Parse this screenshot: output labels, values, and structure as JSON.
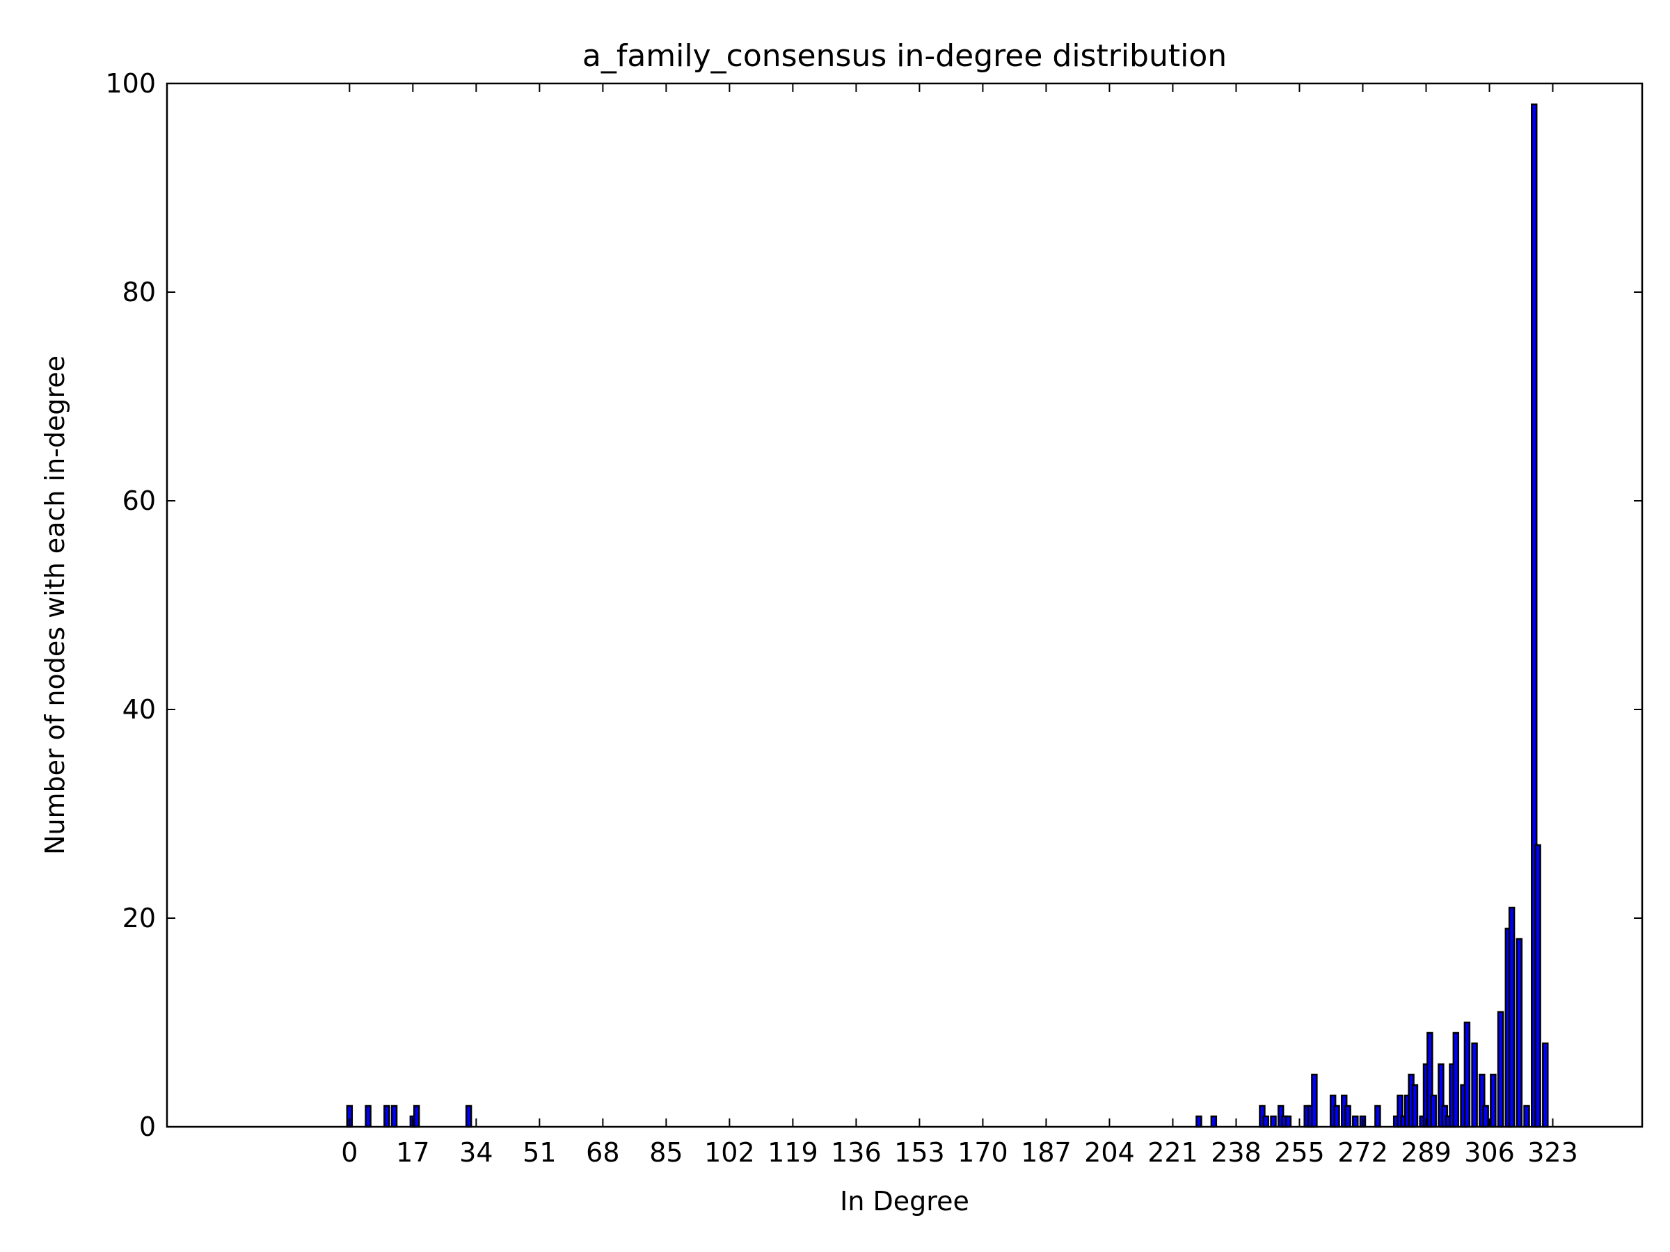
{
  "chart_data": {
    "type": "bar",
    "title": "a_family_consensus in-degree distribution",
    "xlabel": "In Degree",
    "ylabel": "Number of nodes with each in-degree",
    "xlim": [
      -49,
      347
    ],
    "ylim": [
      0,
      100
    ],
    "x_ticks": [
      0,
      17,
      34,
      51,
      68,
      85,
      102,
      119,
      136,
      153,
      170,
      187,
      204,
      221,
      238,
      255,
      272,
      289,
      306,
      323
    ],
    "x_tick_labels": [
      "0",
      "17",
      "34",
      "51",
      "68",
      "85",
      "102",
      "119",
      "136",
      "153",
      "170",
      "187",
      "204",
      "221",
      "238",
      "255",
      "272",
      "289",
      "306",
      "323"
    ],
    "y_ticks": [
      0,
      20,
      40,
      60,
      80,
      100
    ],
    "y_tick_labels": [
      "0",
      "20",
      "40",
      "60",
      "80",
      "100"
    ],
    "grid": false,
    "bar_width": 1.3,
    "colors": {
      "bar_fill": "#0000ff",
      "bar_edge": "#000000",
      "axes": "#000000",
      "background": "#ffffff"
    },
    "x": [
      0,
      5,
      10,
      12,
      17,
      18,
      32,
      228,
      232,
      245,
      246,
      248,
      250,
      251,
      252,
      257,
      258,
      259,
      260,
      264,
      265,
      267,
      268,
      270,
      272,
      273,
      276,
      279,
      279.5,
      281,
      282,
      283,
      284,
      285,
      286,
      287,
      288,
      289,
      290,
      291,
      292,
      293,
      294,
      295,
      296,
      297,
      298,
      299,
      300,
      301,
      302,
      303,
      304,
      305,
      306,
      307,
      308,
      309,
      310,
      311,
      312,
      313,
      314,
      315,
      316,
      317,
      318,
      319,
      320,
      321,
      322,
      323,
      324,
      325,
      326,
      327,
      328,
      329,
      330,
      331
    ],
    "values": [
      2,
      2,
      2,
      2,
      1,
      2,
      2,
      1,
      1,
      2,
      1,
      1,
      2,
      1,
      1,
      2,
      2,
      5,
      0,
      3,
      2,
      3,
      2,
      1,
      1,
      0,
      2,
      0,
      0,
      1,
      3,
      1,
      3,
      5,
      4,
      0,
      1,
      6,
      9,
      3,
      0,
      6,
      2,
      1,
      6,
      9,
      0,
      4,
      10,
      0,
      8,
      0,
      5,
      2,
      0,
      5,
      0,
      11,
      0,
      19,
      21,
      0,
      18,
      0,
      2,
      0,
      98,
      27,
      0,
      8,
      0,
      0,
      0,
      0,
      0,
      0,
      0,
      0,
      0,
      0
    ]
  }
}
